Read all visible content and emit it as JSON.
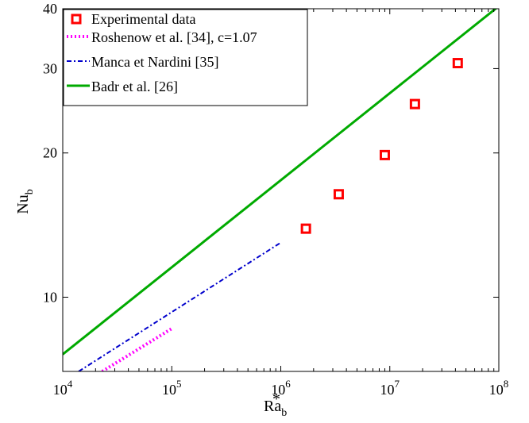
{
  "chart_data": {
    "type": "scatter",
    "x_scale": "log",
    "y_scale": "log",
    "xlim": [
      10000,
      100000000
    ],
    "ylim": [
      7,
      40
    ],
    "xlabel": "Ra",
    "xlabel_sub": "b",
    "ylabel": "Nu",
    "ylabel_sub": "b",
    "stray_mark": "*",
    "grid": false,
    "legend_position": "top-left",
    "x_ticks": [
      {
        "value": 10000,
        "base": "10",
        "exp": "4"
      },
      {
        "value": 100000,
        "base": "10",
        "exp": "5"
      },
      {
        "value": 1000000,
        "base": "10",
        "exp": "6"
      },
      {
        "value": 10000000,
        "base": "10",
        "exp": "7"
      },
      {
        "value": 100000000,
        "base": "10",
        "exp": "8"
      }
    ],
    "y_ticks": [
      {
        "value": 10,
        "label": "10"
      },
      {
        "value": 20,
        "label": "20"
      },
      {
        "value": 30,
        "label": "30"
      },
      {
        "value": 40,
        "label": "40"
      }
    ],
    "series": [
      {
        "name": "Experimental data",
        "kind": "markers",
        "marker": "square",
        "color": "#ff0000",
        "x": [
          1700000,
          3400000,
          9000000,
          17000000,
          42000000
        ],
        "y": [
          13.9,
          16.4,
          19.8,
          25.3,
          30.8
        ]
      },
      {
        "name": "Roshenow et al. [34], c=1.07",
        "kind": "line",
        "style": "dotted",
        "color": "#ff00ff",
        "x": [
          23000,
          100000
        ],
        "y": [
          7.0,
          8.6
        ]
      },
      {
        "name": "Manca et Nardini [35]",
        "kind": "line",
        "style": "dashdot",
        "color": "#0000cc",
        "x": [
          14000,
          1000000
        ],
        "y": [
          7.0,
          13.0
        ]
      },
      {
        "name": "Badr et al. [26]",
        "kind": "line",
        "style": "solid",
        "color": "#00aa00",
        "x": [
          10000,
          100000000
        ],
        "y": [
          7.6,
          40.5
        ]
      }
    ]
  }
}
